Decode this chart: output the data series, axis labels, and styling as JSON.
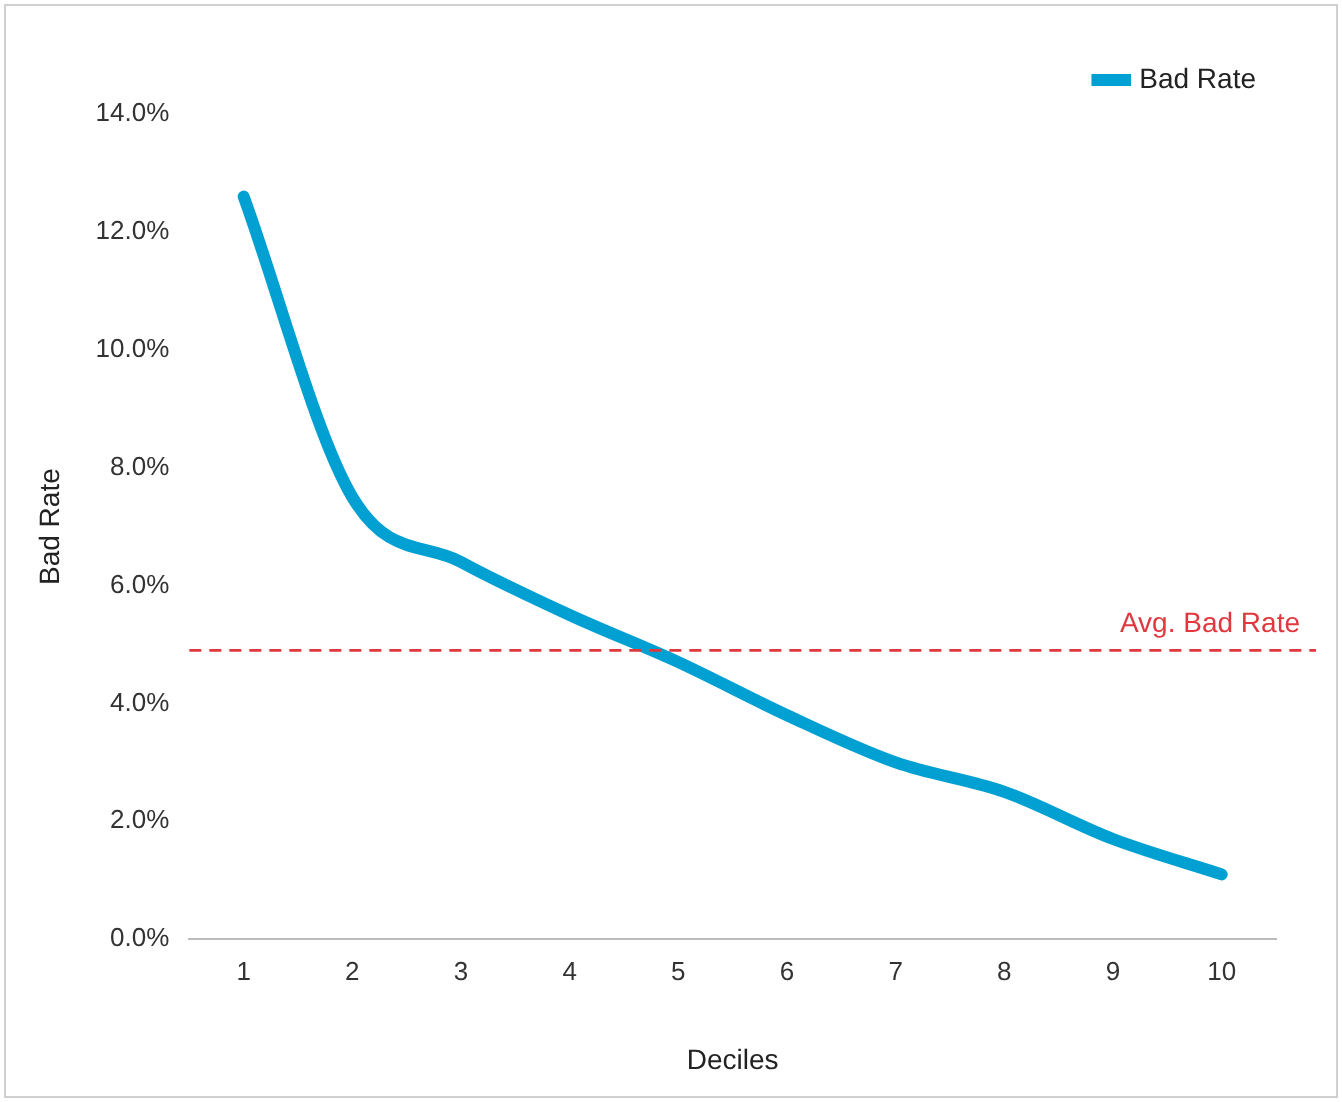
{
  "chart_data": {
    "type": "line",
    "xlabel": "Deciles",
    "ylabel": "Bad Rate",
    "categories": [
      "1",
      "2",
      "3",
      "4",
      "5",
      "6",
      "7",
      "8",
      "9",
      "10"
    ],
    "series": [
      {
        "name": "Bad Rate",
        "color": "#00a0d2",
        "values": [
          12.6,
          7.5,
          6.4,
          5.5,
          4.7,
          3.8,
          3.0,
          2.5,
          1.7,
          1.1
        ]
      }
    ],
    "ylim": [
      0,
      14
    ],
    "yticks": [
      {
        "value": 0,
        "label": "0.0%"
      },
      {
        "value": 2,
        "label": "2.0%"
      },
      {
        "value": 4,
        "label": "4.0%"
      },
      {
        "value": 6,
        "label": "6.0%"
      },
      {
        "value": 8,
        "label": "8.0%"
      },
      {
        "value": 10,
        "label": "10.0%"
      },
      {
        "value": 12,
        "label": "12.0%"
      },
      {
        "value": 14,
        "label": "14.0%"
      }
    ],
    "ref_lines": [
      {
        "axis": "y",
        "value": 4.9,
        "label": "Avg. Bad Rate",
        "color": "#e0383e",
        "line_style": "dashed"
      }
    ],
    "grid": false,
    "legend": "top right",
    "marker": "none",
    "line_style": "solid"
  }
}
